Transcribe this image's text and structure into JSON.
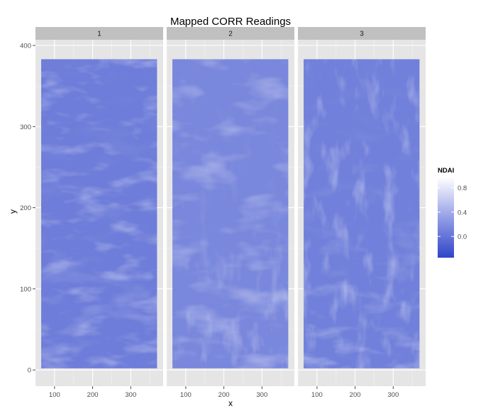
{
  "chart_data": {
    "type": "heatmap",
    "title": "Mapped CORR Readings",
    "xlabel": "x",
    "ylabel": "y",
    "xlim": [
      50,
      385
    ],
    "ylim": [
      -20,
      407
    ],
    "xticks": [
      100,
      200,
      300
    ],
    "yticks": [
      0,
      100,
      200,
      300,
      400
    ],
    "grid": true,
    "facets": [
      {
        "label": "1",
        "x_range": [
          65,
          369
        ],
        "y_range": [
          2,
          383
        ],
        "mean_value": 0.05
      },
      {
        "label": "2",
        "x_range": [
          65,
          369
        ],
        "y_range": [
          2,
          383
        ],
        "mean_value": 0.12
      },
      {
        "label": "3",
        "x_range": [
          65,
          369
        ],
        "y_range": [
          2,
          383
        ],
        "mean_value": 0.07
      }
    ],
    "legend": {
      "title": "NDAI",
      "placement": "right",
      "ticks": [
        "0.8",
        "0.4",
        "0.0"
      ],
      "tick_values": [
        0.8,
        0.4,
        0.0
      ],
      "range": [
        -0.35,
        0.97
      ]
    },
    "colors": {
      "low": "#2f45c8",
      "mid": "#7f8ce0",
      "high": "#ffffff",
      "panel": "#e5e5e5",
      "strip": "#c0c0c0",
      "grid": "#ffffff"
    }
  }
}
